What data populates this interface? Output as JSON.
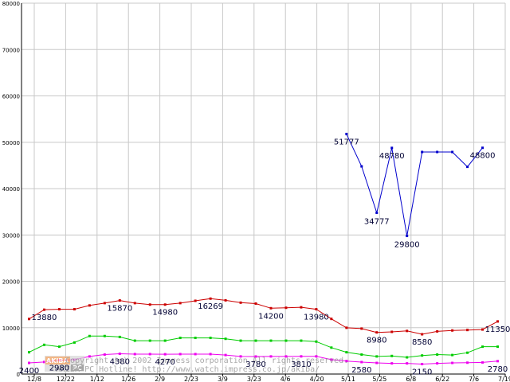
{
  "chart_data": {
    "type": "line",
    "x_ticks": [
      "12/8",
      "12/22",
      "1/12",
      "1/26",
      "2/9",
      "2/23",
      "3/9",
      "3/23",
      "4/6",
      "4/20",
      "5/11",
      "5/25",
      "6/8",
      "6/22",
      "7/6",
      "7/19"
    ],
    "y_ticks": [
      "0",
      "10000",
      "20000",
      "30000",
      "40000",
      "50000",
      "60000",
      "70000",
      "80000"
    ],
    "ylim": [
      0,
      80000
    ],
    "grid": true,
    "series": [
      {
        "color": "#cc0000",
        "values": [
          11880,
          13880,
          13980,
          13980,
          14800,
          15300,
          15870,
          15300,
          14980,
          14980,
          15300,
          15800,
          16269,
          15900,
          15400,
          15200,
          14200,
          14300,
          14400,
          13980,
          11900,
          9980,
          9800,
          8980,
          9100,
          9300,
          8580,
          9200,
          9400,
          9500,
          9600,
          11350
        ],
        "labels": [
          {
            "i": 1,
            "text": "13880"
          },
          {
            "i": 6,
            "text": "15870"
          },
          {
            "i": 9,
            "text": "14980"
          },
          {
            "i": 12,
            "text": "16269"
          },
          {
            "i": 16,
            "text": "14200"
          },
          {
            "i": 19,
            "text": "13980"
          },
          {
            "i": 23,
            "text": "8980"
          },
          {
            "i": 26,
            "text": "8580"
          },
          {
            "i": 31,
            "text": "11350"
          }
        ]
      },
      {
        "color": "#00cc00",
        "values": [
          4700,
          6300,
          5900,
          6800,
          8200,
          8200,
          8000,
          7200,
          7200,
          7200,
          7800,
          7800,
          7800,
          7600,
          7200,
          7200,
          7200,
          7200,
          7200,
          7000,
          5700,
          4700,
          4200,
          3800,
          3900,
          3600,
          4000,
          4200,
          4100,
          4600,
          5900,
          5900
        ],
        "labels": []
      },
      {
        "color": "#ee00ee",
        "values": [
          2400,
          2600,
          2980,
          3100,
          3800,
          4200,
          4380,
          4300,
          4300,
          4270,
          4300,
          4300,
          4300,
          4100,
          3800,
          3780,
          3800,
          3800,
          3810,
          3810,
          3100,
          2800,
          2580,
          2400,
          2300,
          2300,
          2150,
          2300,
          2400,
          2450,
          2500,
          2780
        ],
        "labels": [
          {
            "i": 0,
            "text": "2400"
          },
          {
            "i": 2,
            "text": "2980"
          },
          {
            "i": 6,
            "text": "4380"
          },
          {
            "i": 9,
            "text": "4270"
          },
          {
            "i": 15,
            "text": "3780"
          },
          {
            "i": 18,
            "text": "3810"
          },
          {
            "i": 22,
            "text": "2580"
          },
          {
            "i": 26,
            "text": "2150"
          },
          {
            "i": 31,
            "text": "2780"
          }
        ]
      },
      {
        "color": "#0000cc",
        "start_index": 21,
        "values": [
          51777,
          44800,
          34777,
          48780,
          29800,
          47900,
          47900,
          47900,
          44700,
          48800
        ],
        "labels": [
          {
            "i": 0,
            "text": "51777"
          },
          {
            "i": 2,
            "text": "34777"
          },
          {
            "i": 3,
            "text": "48780"
          },
          {
            "i": 4,
            "text": "29800"
          },
          {
            "i": 9,
            "text": "48800"
          }
        ]
      }
    ]
  },
  "watermark": {
    "logo_left": "AKIBA",
    "logo_right": "PC",
    "line1": "Copyright (c) 2002 Impress corporation All rights reserved.",
    "line2": "AKIBA PC Hotline!  http://www.watch.impress.co.jp/akiba/"
  }
}
